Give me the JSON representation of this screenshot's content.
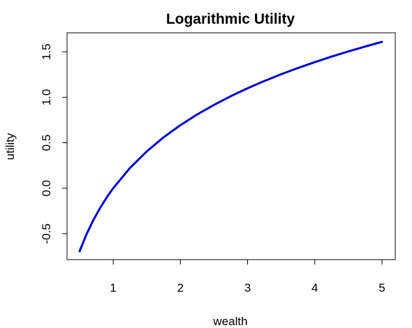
{
  "chart_data": {
    "type": "line",
    "title": "Logarithmic Utility",
    "xlabel": "wealth",
    "ylabel": "utility",
    "xlim": [
      0.5,
      5.0
    ],
    "ylim": [
      -0.693,
      1.609
    ],
    "x_ticks": [
      1,
      2,
      3,
      4,
      5
    ],
    "y_ticks": [
      -0.5,
      0.0,
      0.5,
      1.0,
      1.5
    ],
    "x_tick_labels": [
      "1",
      "2",
      "3",
      "4",
      "5"
    ],
    "y_tick_labels": [
      "-0.5",
      "0.0",
      "0.5",
      "1.0",
      "1.5"
    ],
    "grid": false,
    "legend": "none",
    "series": [
      {
        "color": "#0000cc",
        "x": [
          0.5,
          0.6,
          0.7,
          0.8,
          0.9,
          1.0,
          1.25,
          1.5,
          1.75,
          2.0,
          2.25,
          2.5,
          2.75,
          3.0,
          3.25,
          3.5,
          3.75,
          4.0,
          4.25,
          4.5,
          4.75,
          5.0
        ],
        "y": [
          -0.693,
          -0.511,
          -0.357,
          -0.223,
          -0.105,
          0.0,
          0.223,
          0.405,
          0.56,
          0.693,
          0.811,
          0.916,
          1.012,
          1.099,
          1.179,
          1.253,
          1.322,
          1.386,
          1.447,
          1.504,
          1.558,
          1.609
        ]
      }
    ]
  }
}
